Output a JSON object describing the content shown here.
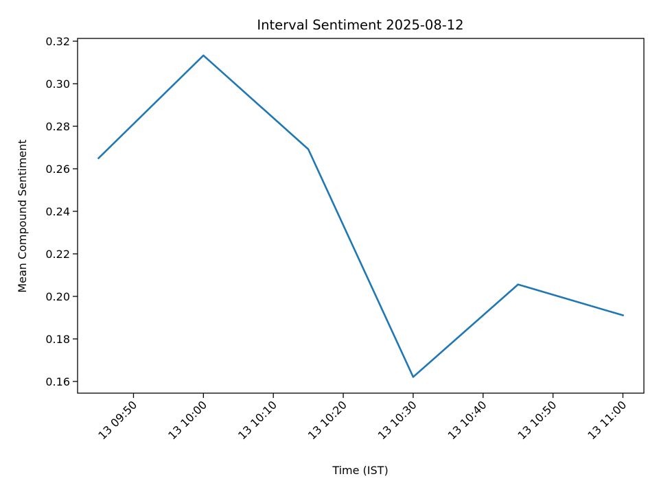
{
  "chart_data": {
    "type": "line",
    "title": "Interval Sentiment 2025-08-12",
    "xlabel": "Time (IST)",
    "ylabel": "Mean Compound Sentiment",
    "x": [
      "13 09:45",
      "13 10:00",
      "13 10:15",
      "13 10:30",
      "13 10:45",
      "13 11:00"
    ],
    "series": [
      {
        "values": [
          0.265,
          0.3133,
          0.2692,
          0.1621,
          0.2056,
          0.1911
        ],
        "color": "#1f77b4"
      }
    ],
    "x_ticks": [
      "13 09:50",
      "13 10:00",
      "13 10:10",
      "13 10:20",
      "13 10:30",
      "13 10:40",
      "13 10:50",
      "13 11:00"
    ],
    "y_ticks": [
      "0.16",
      "0.18",
      "0.20",
      "0.22",
      "0.24",
      "0.26",
      "0.28",
      "0.30",
      "0.32"
    ],
    "ylim": [
      0.1545,
      0.3213
    ],
    "xlim": [
      "13 09:42",
      "13 11:03"
    ],
    "grid": false,
    "legend": "none"
  }
}
